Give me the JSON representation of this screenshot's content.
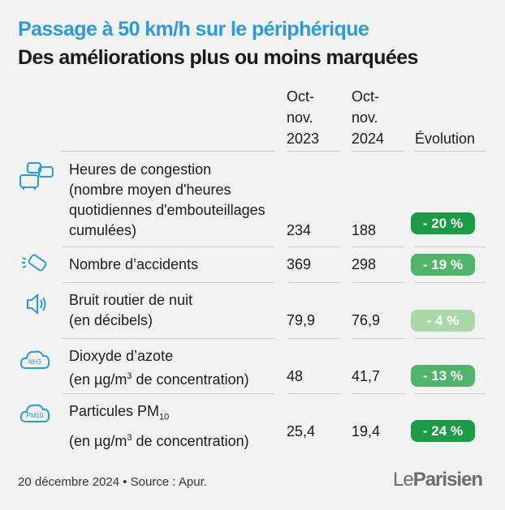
{
  "title": "Passage à 50 km/h sur le périphérique",
  "subtitle": "Des améliorations plus ou moins marquées",
  "columns": {
    "c1": "Oct-\nnov.\n2023",
    "c2": "Oct-\nnov.\n2024",
    "c3": "Évolution"
  },
  "chart_data": {
    "type": "table",
    "columns": [
      "Oct-nov. 2023",
      "Oct-nov. 2024",
      "Évolution"
    ],
    "rows": [
      {
        "label": "Heures de congestion (nombre moyen d'heures quotidiennes d'embouteillages cumulées)",
        "v2023": "234",
        "v2024": "188",
        "evolution": "-20%",
        "evolution_value": -20,
        "icon": "traffic-jam-icon"
      },
      {
        "label": "Nombre d’accidents",
        "v2023": "369",
        "v2024": "298",
        "evolution": "-19%",
        "evolution_value": -19,
        "icon": "car-crash-icon"
      },
      {
        "label": "Bruit routier de nuit (en décibels)",
        "v2023": "79,9",
        "v2024": "76,9",
        "evolution": "-4%",
        "evolution_value": -4,
        "icon": "speaker-icon"
      },
      {
        "label": "Dioxyde d’azote (en µg/m3 de concentration)",
        "v2023": "48",
        "v2024": "41,7",
        "evolution": "-13%",
        "evolution_value": -13,
        "icon": "no2-cloud-icon"
      },
      {
        "label": "Particules PM10 (en µg/m3 de concentration)",
        "v2023": "25,4",
        "v2024": "19,4",
        "evolution": "-24%",
        "evolution_value": -24,
        "icon": "pm10-cloud-icon"
      }
    ]
  },
  "rows": {
    "r0": {
      "l1": "Heures de congestion",
      "l2": "(nombre moyen d'heures",
      "l3": "quotidiennes d'embouteillages",
      "l4": "cumulées)",
      "v1": "234",
      "v2": "188",
      "evo": "- 20 %"
    },
    "r1": {
      "l1": "Nombre d’accidents",
      "v1": "369",
      "v2": "298",
      "evo": "- 19 %"
    },
    "r2": {
      "l1": "Bruit routier de nuit",
      "l2": "(en décibels)",
      "v1": "79,9",
      "v2": "76,9",
      "evo": "- 4 %"
    },
    "r3": {
      "l1": "Dioxyde d’azote",
      "l2a": "(en µg/m",
      "l2sup": "3",
      "l2b": " de concentration)",
      "v1": "48",
      "v2": "41,7",
      "evo": "- 13 %",
      "icon_text": "NH3"
    },
    "r4": {
      "l1a": "Particules PM",
      "l1sub": "10",
      "l2a": "(en µg/m",
      "l2sup": "3",
      "l2b": " de concentration)",
      "v1": "25,4",
      "v2": "19,4",
      "evo": "- 24 %",
      "icon_text": "PM10"
    }
  },
  "colors": {
    "title": "#2e9bd6",
    "icon": "#2e9bd6",
    "pill_dark": "#1c9a45",
    "pill_mid": "#52b46a",
    "pill_light": "#a9d9a8"
  },
  "footer": "20 décembre 2024 • Source : Apur.",
  "logo": {
    "a": "Le",
    "b": "Parisien"
  }
}
